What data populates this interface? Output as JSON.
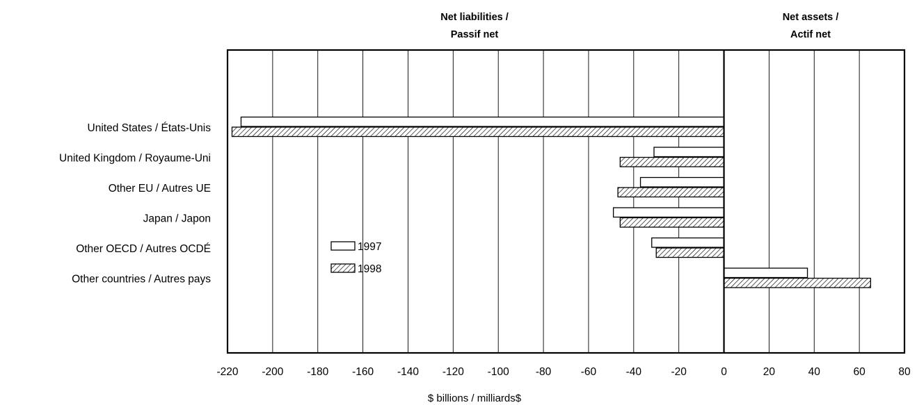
{
  "chart_data": {
    "type": "bar",
    "orientation": "horizontal",
    "title": "",
    "header_left": [
      "Net liabilities /",
      "Passif net"
    ],
    "header_right": [
      "Net assets /",
      "Actif net"
    ],
    "xlabel": "$ billions / milliards$",
    "ylabel": "",
    "xlim": [
      -220,
      80
    ],
    "x_ticks": [
      "-220",
      "-200",
      "-180",
      "-160",
      "-140",
      "-120",
      "-100",
      "-80",
      "-60",
      "-40",
      "-20",
      "0",
      "20",
      "40",
      "60",
      "80"
    ],
    "grid": "vertical",
    "legend_position": "center-left",
    "categories": [
      "United States / États-Unis",
      "United Kingdom / Royaume-Uni",
      "Other EU / Autres UE",
      "Japan / Japon",
      "Other OECD / Autres OCDÉ",
      "Other countries / Autres pays"
    ],
    "series": [
      {
        "name": "1997",
        "fill": "plain",
        "values": [
          -214,
          -31,
          -37,
          -49,
          -32,
          37
        ]
      },
      {
        "name": "1998",
        "fill": "hatched",
        "values": [
          -218,
          -46,
          -47,
          -46,
          -30,
          65
        ]
      }
    ]
  }
}
